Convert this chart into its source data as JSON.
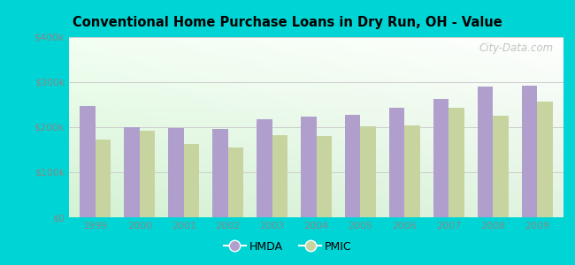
{
  "title": "Conventional Home Purchase Loans in Dry Run, OH - Value",
  "years": [
    1999,
    2000,
    2001,
    2002,
    2003,
    2004,
    2005,
    2006,
    2007,
    2008,
    2009
  ],
  "hmda": [
    248000,
    200000,
    198000,
    197000,
    218000,
    223000,
    228000,
    243000,
    262000,
    290000,
    292000
  ],
  "pmic": [
    173000,
    193000,
    163000,
    155000,
    182000,
    181000,
    202000,
    204000,
    243000,
    225000,
    256000
  ],
  "hmda_color": "#b09fcc",
  "pmic_color": "#c8d4a0",
  "background_outer": "#00d4d4",
  "background_inner_bottom": "#c8e8c8",
  "background_inner_top": "#e8f4f0",
  "ylabel_ticks": [
    "$0",
    "$100k",
    "$200k",
    "$300k",
    "$400k"
  ],
  "ytick_vals": [
    0,
    100000,
    200000,
    300000,
    400000
  ],
  "ylim": [
    0,
    400000
  ],
  "bar_width": 0.35,
  "legend_labels": [
    "HMDA",
    "PMIC"
  ],
  "watermark": "City-Data.com",
  "tick_color": "#888888",
  "grid_color": "#cccccc"
}
